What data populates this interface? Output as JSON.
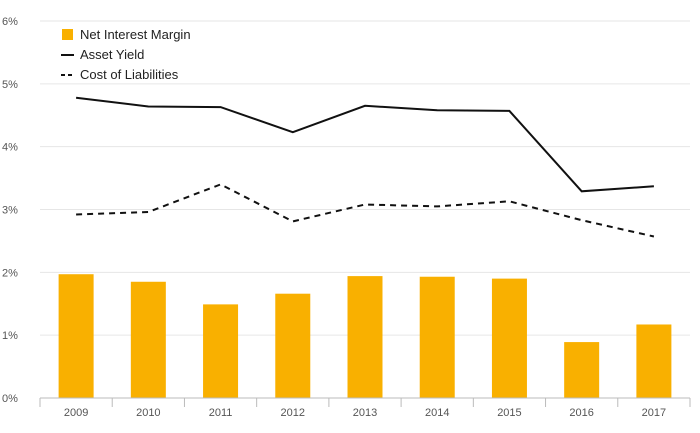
{
  "colors": {
    "bar": "#F9B000",
    "line": "#111111",
    "grid": "#E6E6E6",
    "axis": "#BBBBBB",
    "text": "#555555"
  },
  "chart_data": {
    "type": "bar",
    "title": "",
    "xlabel": "",
    "ylabel": "",
    "categories": [
      "2009",
      "2010",
      "2011",
      "2012",
      "2013",
      "2014",
      "2015",
      "2016",
      "2017"
    ],
    "ylim": [
      0,
      6
    ],
    "y_ticks": [
      "0%",
      "1%",
      "2%",
      "3%",
      "4%",
      "5%",
      "6%"
    ],
    "grid": true,
    "legend_position": "top-left",
    "series": [
      {
        "name": "Net Interest Margin",
        "type": "bar",
        "values": [
          1.97,
          1.85,
          1.49,
          1.66,
          1.94,
          1.93,
          1.9,
          0.89,
          1.17
        ]
      },
      {
        "name": "Asset Yield",
        "type": "line",
        "style": "solid",
        "values": [
          4.78,
          4.64,
          4.63,
          4.23,
          4.65,
          4.58,
          4.57,
          3.29,
          3.37
        ]
      },
      {
        "name": "Cost of Liabilities",
        "type": "line",
        "style": "dashed",
        "values": [
          2.92,
          2.96,
          3.4,
          2.81,
          3.08,
          3.05,
          3.13,
          2.83,
          2.57
        ]
      }
    ]
  }
}
